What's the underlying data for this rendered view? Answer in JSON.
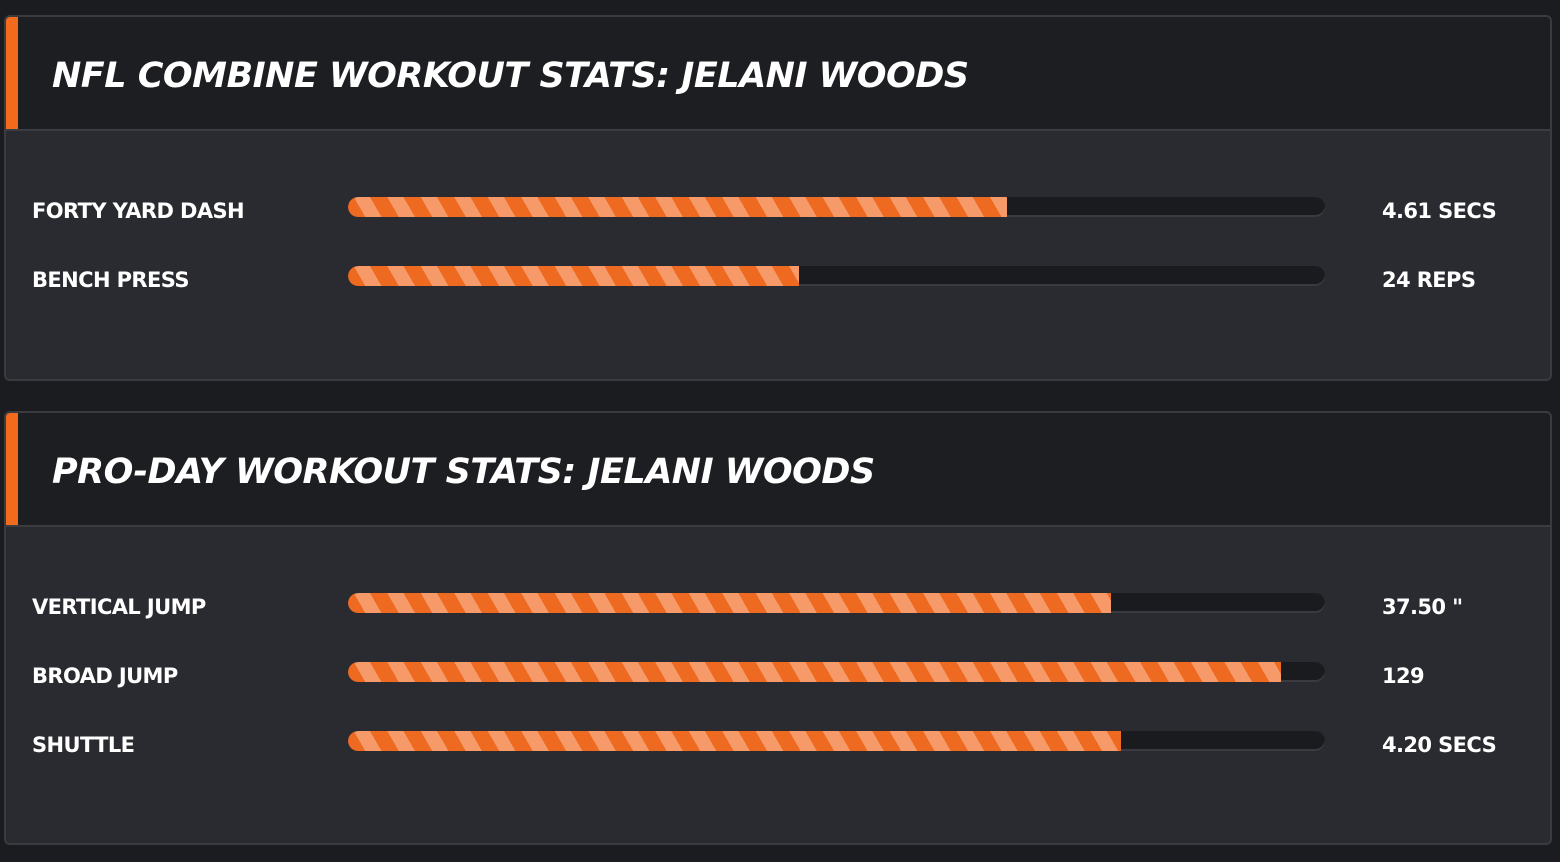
{
  "combine": {
    "title": "NFL COMBINE WORKOUT STATS: JELANI WOODS",
    "stats": [
      {
        "label": "FORTY YARD DASH",
        "value": "4.61 SECS",
        "fill_fraction": 0.675
      },
      {
        "label": "BENCH PRESS",
        "value": "24 REPS",
        "fill_fraction": 0.462
      }
    ]
  },
  "proday": {
    "title": "PRO-DAY WORKOUT STATS: JELANI WOODS",
    "stats": [
      {
        "label": "VERTICAL JUMP",
        "value": "37.50 \"",
        "fill_fraction": 0.781
      },
      {
        "label": "BROAD JUMP",
        "value": "129",
        "fill_fraction": 0.955
      },
      {
        "label": "SHUTTLE",
        "value": "4.20 SECS",
        "fill_fraction": 0.791
      }
    ]
  },
  "colors": {
    "accent": "#f26a1b",
    "bar_stripe_dark": "#ee6a20",
    "bar_stripe_light": "#f59a68",
    "panel_bg": "#2a2b30",
    "header_bg": "#1d1e22",
    "page_bg": "#1b1c20"
  }
}
